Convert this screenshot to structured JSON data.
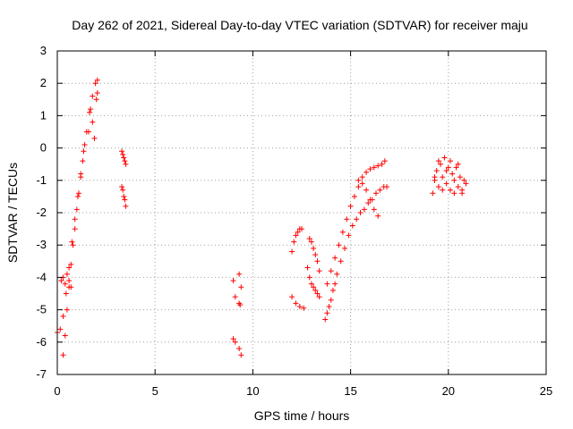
{
  "chart_data": {
    "type": "scatter",
    "title": "Day 262 of 2021, Sidereal Day-to-day VTEC variation (SDTVAR) for receiver maju",
    "xlabel": "GPS time / hours",
    "ylabel": "SDTVAR / TECUs",
    "xlim": [
      0,
      25
    ],
    "ylim": [
      -7,
      3
    ],
    "xticks": [
      0,
      5,
      10,
      15,
      20,
      25
    ],
    "yticks": [
      -7,
      -6,
      -5,
      -4,
      -3,
      -2,
      -1,
      0,
      1,
      2,
      3
    ],
    "grid": true,
    "marker": "+",
    "series_color": "#ff0000",
    "segments": [
      {
        "x": [
          0.0,
          0.15,
          0.3,
          0.45,
          0.6,
          0.75,
          0.9,
          1.05,
          1.2,
          1.35,
          1.5,
          1.65,
          1.8,
          1.95,
          2.05
        ],
        "y": [
          -5.7,
          -5.6,
          -5.2,
          -4.5,
          -3.7,
          -2.9,
          -2.2,
          -1.5,
          -0.8,
          -0.1,
          0.5,
          1.1,
          1.6,
          2.0,
          2.1
        ]
      },
      {
        "x": [
          0.3,
          0.4,
          0.5,
          0.6,
          0.7,
          0.8,
          0.9,
          1.0,
          1.1,
          1.2,
          1.3,
          1.4
        ],
        "y": [
          -6.4,
          -5.8,
          -5.0,
          -4.3,
          -3.6,
          -3.0,
          -2.5,
          -1.9,
          -1.4,
          -0.9,
          -0.4,
          0.1
        ]
      },
      {
        "x": [
          0.2,
          0.3,
          0.4,
          0.5,
          0.6,
          0.7
        ],
        "y": [
          -4.1,
          -4.0,
          -4.2,
          -3.9,
          -4.1,
          -4.3
        ]
      },
      {
        "x": [
          1.6,
          1.7,
          1.8,
          1.9,
          2.0,
          2.05
        ],
        "y": [
          0.5,
          1.2,
          0.8,
          0.3,
          1.5,
          1.7
        ]
      },
      {
        "x": [
          3.3,
          3.35,
          3.4,
          3.45,
          3.5
        ],
        "y": [
          -0.1,
          -0.2,
          -0.3,
          -0.4,
          -0.5
        ]
      },
      {
        "x": [
          3.3,
          3.35,
          3.4,
          3.45,
          3.5
        ],
        "y": [
          -1.2,
          -1.3,
          -1.5,
          -1.6,
          -1.8
        ]
      },
      {
        "x": [
          9.0,
          9.1,
          9.3,
          9.4
        ],
        "y": [
          -4.1,
          -4.6,
          -3.9,
          -4.3
        ]
      },
      {
        "x": [
          9.0,
          9.1,
          9.3,
          9.4
        ],
        "y": [
          -5.9,
          -6.0,
          -6.2,
          -6.4
        ]
      },
      {
        "x": [
          9.3,
          9.35
        ],
        "y": [
          -4.8,
          -4.85
        ]
      },
      {
        "x": [
          12.0,
          12.1,
          12.2,
          12.3,
          12.4,
          12.5
        ],
        "y": [
          -3.2,
          -2.9,
          -2.7,
          -2.6,
          -2.5,
          -2.5
        ]
      },
      {
        "x": [
          12.0,
          12.2,
          12.4,
          12.6
        ],
        "y": [
          -4.6,
          -4.8,
          -4.9,
          -4.95
        ]
      },
      {
        "x": [
          12.9,
          13.0,
          13.1,
          13.2,
          13.3,
          13.4
        ],
        "y": [
          -2.8,
          -2.9,
          -3.1,
          -3.3,
          -3.5,
          -3.8
        ]
      },
      {
        "x": [
          12.8,
          12.9,
          13.0,
          13.1,
          13.2,
          13.3,
          13.4
        ],
        "y": [
          -3.7,
          -4.0,
          -4.2,
          -4.3,
          -4.4,
          -4.5,
          -4.6
        ]
      },
      {
        "x": [
          13.7,
          13.8,
          13.9,
          14.0,
          14.1,
          14.2,
          14.3,
          14.5,
          14.7,
          14.9,
          15.1,
          15.3,
          15.5,
          15.7,
          15.9,
          16.1,
          16.3,
          16.5,
          16.7,
          16.85
        ],
        "y": [
          -5.3,
          -5.1,
          -4.9,
          -4.7,
          -4.4,
          -4.2,
          -3.9,
          -3.5,
          -3.1,
          -2.7,
          -2.4,
          -2.2,
          -2.0,
          -1.9,
          -1.7,
          -1.6,
          -1.4,
          -1.3,
          -1.2,
          -1.2
        ]
      },
      {
        "x": [
          13.8,
          14.0,
          14.2,
          14.4,
          14.6,
          14.8,
          15.0,
          15.2,
          15.4,
          15.6,
          15.8,
          16.0,
          16.2,
          16.4,
          16.6,
          16.75
        ],
        "y": [
          -4.2,
          -3.8,
          -3.4,
          -3.0,
          -2.6,
          -2.2,
          -1.8,
          -1.5,
          -1.2,
          -0.9,
          -0.75,
          -0.65,
          -0.6,
          -0.55,
          -0.5,
          -0.4
        ]
      },
      {
        "x": [
          15.4,
          15.6,
          15.8,
          16.0,
          16.2,
          16.4
        ],
        "y": [
          -1.0,
          -1.1,
          -1.3,
          -1.6,
          -1.9,
          -2.1
        ]
      },
      {
        "x": [
          19.2,
          19.3,
          19.4,
          19.5,
          19.6,
          19.7,
          19.8,
          19.9,
          20.0,
          20.1,
          20.2,
          20.3,
          20.4,
          20.5,
          20.6,
          20.7,
          20.8,
          20.9
        ],
        "y": [
          -1.4,
          -1.0,
          -0.7,
          -1.2,
          -0.5,
          -0.9,
          -0.3,
          -1.1,
          -0.6,
          -1.3,
          -0.8,
          -1.0,
          -0.6,
          -1.2,
          -0.9,
          -1.3,
          -1.0,
          -1.1
        ]
      },
      {
        "x": [
          19.3,
          19.5,
          19.7,
          19.9,
          20.1,
          20.3,
          20.5,
          20.7
        ],
        "y": [
          -0.9,
          -0.4,
          -1.3,
          -0.7,
          -0.4,
          -1.4,
          -0.5,
          -1.4
        ]
      }
    ]
  }
}
